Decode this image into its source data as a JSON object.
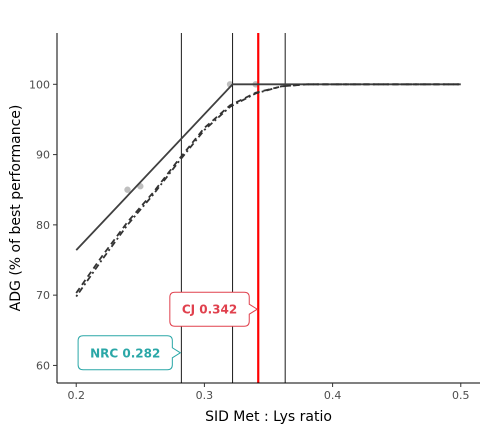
{
  "chart_data": {
    "type": "line",
    "xlabel": "SID Met : Lys ratio",
    "ylabel": "ADG (% of best performance)",
    "xlim": [
      0.185,
      0.515
    ],
    "ylim": [
      57.5,
      107.3
    ],
    "x_ticks": [
      0.2,
      0.3,
      0.4,
      0.5
    ],
    "x_tick_labels": [
      "0.2",
      "0.3",
      "0.4",
      "0.5"
    ],
    "y_ticks": [
      60,
      70,
      80,
      90,
      100
    ],
    "y_tick_labels": [
      "60",
      "70",
      "80",
      "90",
      "100"
    ],
    "grid": false,
    "series": [
      {
        "style": "solid",
        "color": "#404040",
        "points": [
          [
            0.2,
            76.4
          ],
          [
            0.322,
            100
          ],
          [
            0.5,
            100
          ]
        ]
      },
      {
        "style": "dashed",
        "color": "#333333",
        "points": [
          [
            0.2,
            70.3
          ],
          [
            0.22,
            75.5
          ],
          [
            0.24,
            80.4
          ],
          [
            0.26,
            84.6
          ],
          [
            0.28,
            89.3
          ],
          [
            0.3,
            93.8
          ],
          [
            0.32,
            97.0
          ],
          [
            0.34,
            98.8
          ],
          [
            0.36,
            99.7
          ],
          [
            0.38,
            100
          ],
          [
            0.5,
            100
          ]
        ]
      },
      {
        "style": "dash-dot",
        "color": "#333333",
        "points": [
          [
            0.2,
            69.8
          ],
          [
            0.22,
            75.0
          ],
          [
            0.24,
            80.0
          ],
          [
            0.26,
            84.3
          ],
          [
            0.28,
            89.0
          ],
          [
            0.3,
            93.5
          ],
          [
            0.32,
            96.8
          ],
          [
            0.34,
            98.7
          ],
          [
            0.36,
            99.7
          ],
          [
            0.38,
            100
          ],
          [
            0.5,
            100
          ]
        ]
      }
    ],
    "observed_points": [
      [
        0.24,
        85.0
      ],
      [
        0.25,
        85.5
      ],
      [
        0.32,
        100
      ],
      [
        0.34,
        100
      ]
    ],
    "reference_lines": [
      {
        "x": 0.282,
        "color": "#000000"
      },
      {
        "x": 0.322,
        "color": "#000000"
      },
      {
        "x": 0.342,
        "color": "#ff0000"
      },
      {
        "x": 0.363,
        "color": "#000000"
      }
    ],
    "annotations": [
      {
        "text": "NRC 0.282",
        "x": 0.282,
        "y": 61.8,
        "color": "#2aa7a7"
      },
      {
        "text": "CJ 0.342",
        "x": 0.342,
        "y": 68.0,
        "color": "#e0404d"
      }
    ]
  }
}
